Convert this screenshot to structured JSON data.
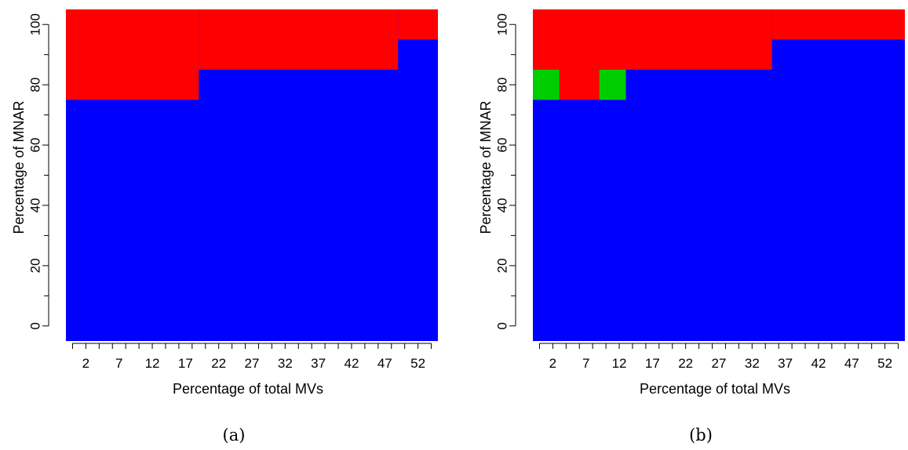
{
  "figure": {
    "panels": [
      {
        "caption": "(a)",
        "chart_data": {
          "type": "heatmap",
          "xlabel": "Percentage of total MVs",
          "ylabel": "Percentage of MNAR",
          "x_ticks": [
            "2",
            "7",
            "12",
            "17",
            "22",
            "27",
            "32",
            "37",
            "42",
            "47",
            "52"
          ],
          "y_ticks": [
            "0",
            "20",
            "40",
            "60",
            "80",
            "100"
          ],
          "x_values": [
            0,
            2,
            4,
            6,
            8,
            10,
            12,
            14,
            16,
            18,
            20,
            22,
            24,
            26,
            28,
            30,
            32,
            34,
            36,
            38,
            40,
            42,
            44,
            46,
            48,
            50,
            52,
            54
          ],
          "y_values": [
            0,
            10,
            20,
            30,
            40,
            50,
            60,
            70,
            80,
            90,
            100
          ],
          "xlim": [
            -1,
            55
          ],
          "ylim": [
            -5,
            105
          ],
          "colors": {
            "blue": "#0000ff",
            "red": "#ff0000",
            "green": "#00cd00"
          },
          "regions": [
            {
              "x_from": -1,
              "x_to": 55,
              "y_from": -5,
              "y_to": 105,
              "color": "blue"
            },
            {
              "x_from": -1,
              "x_to": 19,
              "y_from": 75,
              "y_to": 105,
              "color": "red"
            },
            {
              "x_from": 19,
              "x_to": 49,
              "y_from": 85,
              "y_to": 105,
              "color": "red"
            },
            {
              "x_from": 49,
              "x_to": 55,
              "y_from": 95,
              "y_to": 105,
              "color": "red"
            }
          ]
        }
      },
      {
        "caption": "(b)",
        "chart_data": {
          "type": "heatmap",
          "xlabel": "Percentage of total MVs",
          "ylabel": "Percentage of MNAR",
          "x_ticks": [
            "2",
            "7",
            "12",
            "17",
            "22",
            "27",
            "32",
            "37",
            "42",
            "47",
            "52"
          ],
          "y_ticks": [
            "0",
            "20",
            "40",
            "60",
            "80",
            "100"
          ],
          "x_values": [
            0,
            2,
            4,
            6,
            8,
            10,
            12,
            14,
            16,
            18,
            20,
            22,
            24,
            26,
            28,
            30,
            32,
            34,
            36,
            38,
            40,
            42,
            44,
            46,
            48,
            50,
            52,
            54
          ],
          "y_values": [
            0,
            10,
            20,
            30,
            40,
            50,
            60,
            70,
            80,
            90,
            100
          ],
          "xlim": [
            -1,
            55
          ],
          "ylim": [
            -5,
            105
          ],
          "colors": {
            "blue": "#0000ff",
            "red": "#ff0000",
            "green": "#00cd00"
          },
          "regions": [
            {
              "x_from": -1,
              "x_to": 55,
              "y_from": -5,
              "y_to": 105,
              "color": "blue"
            },
            {
              "x_from": -1,
              "x_to": 35,
              "y_from": 85,
              "y_to": 105,
              "color": "red"
            },
            {
              "x_from": 35,
              "x_to": 55,
              "y_from": 95,
              "y_to": 105,
              "color": "red"
            },
            {
              "x_from": -1,
              "x_to": 3,
              "y_from": 75,
              "y_to": 85,
              "color": "green"
            },
            {
              "x_from": 3,
              "x_to": 9,
              "y_from": 75,
              "y_to": 85,
              "color": "red"
            },
            {
              "x_from": 9,
              "x_to": 13,
              "y_from": 75,
              "y_to": 85,
              "color": "green"
            }
          ]
        }
      }
    ]
  }
}
